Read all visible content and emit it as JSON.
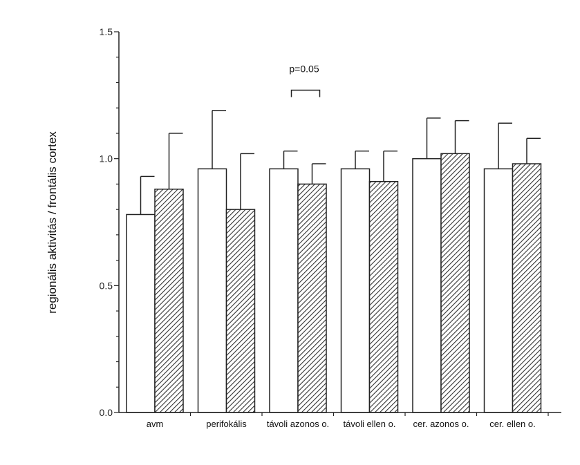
{
  "chart_data": {
    "type": "bar",
    "ylabel": "regionális aktivitás / frontális cortex",
    "ylim": [
      0,
      1.5
    ],
    "yticks": [
      {
        "value": 0.0,
        "label": "0.0"
      },
      {
        "value": 0.5,
        "label": "0.5"
      },
      {
        "value": 1.0,
        "label": "1.0"
      },
      {
        "value": 1.5,
        "label": "1.5"
      }
    ],
    "categories": [
      "avm",
      "perifokális",
      "távoli azonos o.",
      "távoli ellen o.",
      "cer. azonos o.",
      "cer. ellen o."
    ],
    "series": [
      {
        "fill": "#ffffff",
        "values": [
          0.78,
          0.96,
          0.96,
          0.96,
          1.0,
          0.96
        ],
        "error_upper": [
          0.93,
          1.19,
          1.03,
          1.03,
          1.16,
          1.14
        ]
      },
      {
        "fill": "hatched",
        "values": [
          0.88,
          0.8,
          0.9,
          0.91,
          1.02,
          0.98
        ],
        "error_upper": [
          1.1,
          1.02,
          0.98,
          1.03,
          1.15,
          1.08
        ]
      }
    ],
    "annotations": [
      {
        "text": "p=0.05",
        "category_index": 2,
        "bracket_y": 1.27
      }
    ],
    "grid": false,
    "legend": "none"
  }
}
